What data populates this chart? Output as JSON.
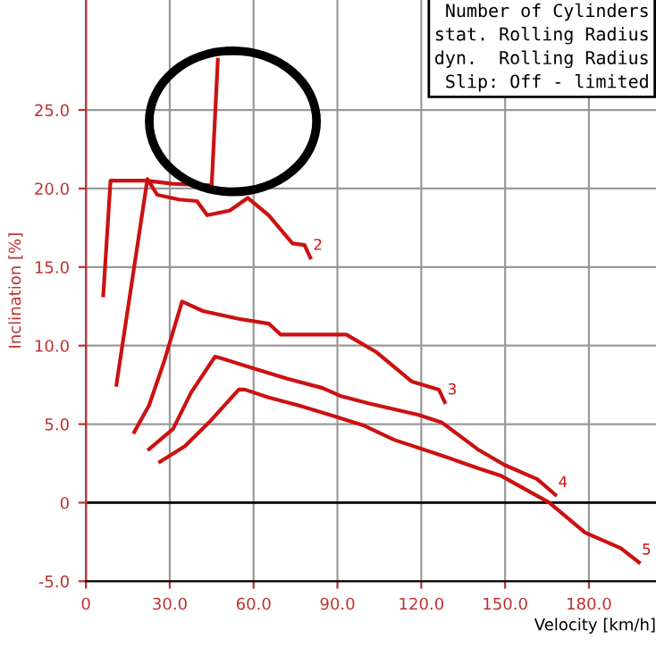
{
  "chart_data": {
    "type": "line",
    "xlabel": "Velocity [km/h]",
    "ylabel": "Inclination [%]",
    "xlim": [
      0,
      204
    ],
    "ylim": [
      -5,
      32
    ],
    "xticks": [
      0,
      {
        "value": 30,
        "label": "30.0"
      },
      {
        "value": 60,
        "label": "60.0"
      },
      {
        "value": 90,
        "label": "90.0"
      },
      {
        "value": 120,
        "label": "120.0"
      },
      {
        "value": 150,
        "label": "150.0"
      },
      {
        "value": 180,
        "label": "180.0"
      }
    ],
    "yticks": [
      {
        "value": -5,
        "label": "-5.0"
      },
      0,
      {
        "value": 5,
        "label": "5.0"
      },
      {
        "value": 10,
        "label": "10.0"
      },
      {
        "value": 15,
        "label": "15.0"
      },
      {
        "value": 20,
        "label": "20.0"
      },
      {
        "value": 25,
        "label": "25.0"
      }
    ],
    "grid": true,
    "line_style": "solid",
    "ref_lines": [
      {
        "axis": "y",
        "value": 0,
        "color": "#000000"
      }
    ],
    "annotations": [
      "Number of Cylinders",
      "stat. Rolling Radius",
      "dyn.  Rolling Radius",
      "Slip: Off - limited"
    ],
    "series": [
      {
        "color": "#cc1111",
        "x": [
          6.2,
          8.8,
          21.6,
          31,
          45,
          47.2
        ],
        "values": [
          13.2,
          20.5,
          20.5,
          20.3,
          20.2,
          28.2
        ]
      },
      {
        "name": "2",
        "color": "#cc1111",
        "x": [
          10.9,
          22,
          25.5,
          33.3,
          39.7,
          43.4,
          51.5,
          57.9,
          65.4,
          73.9,
          78.2,
          80.3
        ],
        "values": [
          7.5,
          20.6,
          19.6,
          19.3,
          19.2,
          18.3,
          18.6,
          19.4,
          18.3,
          16.5,
          16.4,
          15.6
        ]
      },
      {
        "name": "3",
        "color": "#cc1111",
        "x": [
          17.3,
          22.6,
          28,
          34.4,
          41.9,
          54.7,
          65.4,
          69.7,
          93.2,
          103.8,
          116.7,
          126.3,
          128.4
        ],
        "values": [
          4.5,
          6.2,
          9.0,
          12.8,
          12.2,
          11.7,
          11.4,
          10.7,
          10.7,
          9.6,
          7.7,
          7.2,
          6.4
        ]
      },
      {
        "name": "4",
        "color": "#cc1111",
        "x": [
          22.6,
          31.2,
          37.6,
          46.2,
          48.3,
          59,
          71.8,
          84.6,
          91,
          101.7,
          118.8,
          127.4,
          140.2,
          149.8,
          161.5,
          168
        ],
        "values": [
          3.4,
          4.7,
          7.0,
          9.3,
          9.2,
          8.6,
          7.9,
          7.3,
          6.8,
          6.3,
          5.6,
          5.1,
          3.4,
          2.4,
          1.5,
          0.5
        ]
      },
      {
        "name": "5",
        "color": "#cc1111",
        "x": [
          26.5,
          35.4,
          44,
          54.7,
          56.8,
          65.4,
          76,
          88.9,
          99.6,
          110.3,
          127.4,
          140.2,
          148.7,
          165.8,
          178.6,
          191.4,
          197.9
        ],
        "values": [
          2.6,
          3.6,
          5.1,
          7.2,
          7.2,
          6.7,
          6.2,
          5.5,
          4.9,
          4.0,
          3.0,
          2.2,
          1.7,
          0,
          -1.9,
          -2.9,
          -3.8
        ]
      }
    ]
  }
}
